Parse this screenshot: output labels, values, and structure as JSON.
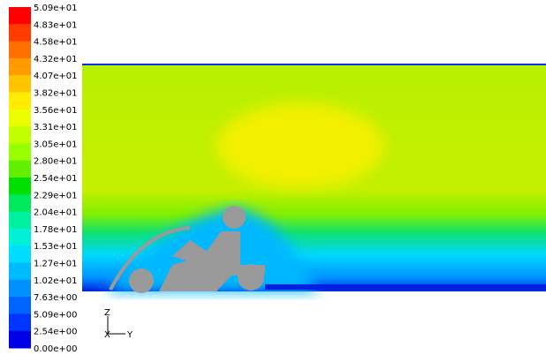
{
  "legend": {
    "levels": [
      "5.09e+01",
      "4.83e+01",
      "4.58e+01",
      "4.32e+01",
      "4.07e+01",
      "3.82e+01",
      "3.56e+01",
      "3.31e+01",
      "3.05e+01",
      "2.80e+01",
      "2.54e+01",
      "2.29e+01",
      "2.04e+01",
      "1.78e+01",
      "1.53e+01",
      "1.27e+01",
      "1.02e+01",
      "7.63e+00",
      "5.09e+00",
      "2.54e+00",
      "0.00e+00"
    ],
    "colors": [
      "#ff0000",
      "#ff3c00",
      "#ff6e00",
      "#ff9a00",
      "#ffc400",
      "#ffec00",
      "#eaff00",
      "#c4ff00",
      "#98ff00",
      "#62f000",
      "#00e000",
      "#00e85c",
      "#00f0a0",
      "#00f0d8",
      "#00dcff",
      "#00baff",
      "#0090ff",
      "#0064ff",
      "#0034ff",
      "#0000e8"
    ]
  },
  "axes_triad": {
    "z": "Z",
    "x": "X",
    "y": "Y"
  }
}
